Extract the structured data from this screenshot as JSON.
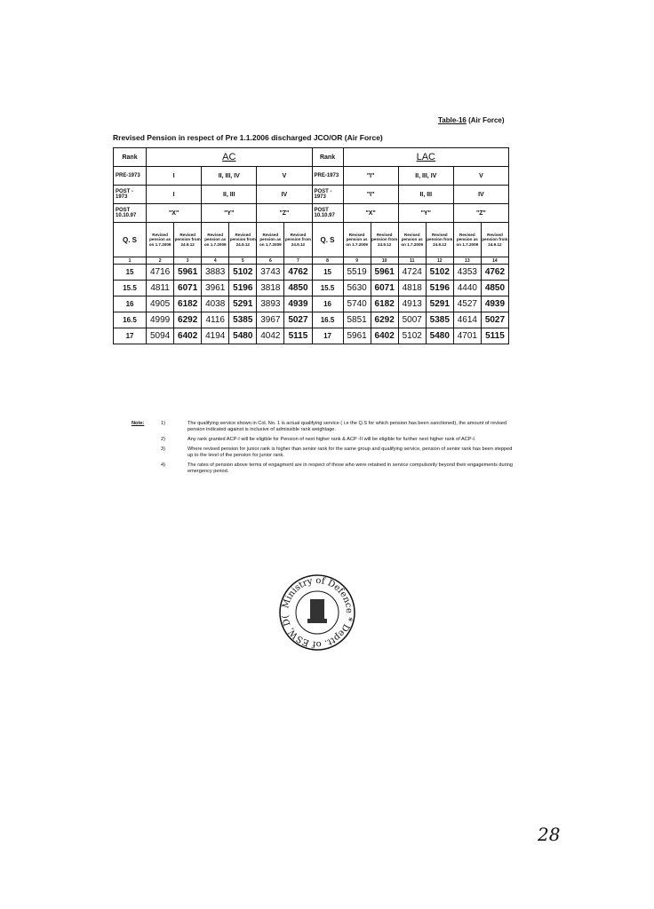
{
  "table_ref": {
    "label": "Table-16",
    "suffix": " (Air Force)"
  },
  "title": "Rrevised Pension in respect of Pre 1.1.2006 discharged JCO/OR (Air Force)",
  "table": {
    "rank_label": "Rank",
    "ac": "AC",
    "lac": "LAC",
    "rows_left": [
      "PRE-1973",
      "POST - 1973",
      "POST 10.10.97"
    ],
    "ac_groups": [
      [
        "I",
        "II, III, IV",
        "V"
      ],
      [
        "I",
        "II, III",
        "IV"
      ],
      [
        "\"X\"",
        "\"Y\"",
        "\"Z\""
      ]
    ],
    "lac_groups": [
      [
        "\"I\"",
        "II, III, IV",
        "V"
      ],
      [
        "\"I\"",
        "II, III",
        "IV"
      ],
      [
        "\"X\"",
        "\"Y\"",
        "\"Z\""
      ]
    ],
    "qs_label": "Q. S",
    "col_heads": [
      "Revised pension as on 1.7.2009",
      "Revised pension from 24.9.12"
    ],
    "col_numbers": [
      "1",
      "2",
      "3",
      "4",
      "5",
      "6",
      "7",
      "8",
      "9",
      "10",
      "11",
      "12",
      "13",
      "14"
    ],
    "rows": [
      [
        "15",
        "4716",
        "5961",
        "3883",
        "5102",
        "3743",
        "4762",
        "15",
        "5519",
        "5961",
        "4724",
        "5102",
        "4353",
        "4762"
      ],
      [
        "15.5",
        "4811",
        "6071",
        "3961",
        "5196",
        "3818",
        "4850",
        "15.5",
        "5630",
        "6071",
        "4818",
        "5196",
        "4440",
        "4850"
      ],
      [
        "16",
        "4905",
        "6182",
        "4038",
        "5291",
        "3893",
        "4939",
        "16",
        "5740",
        "6182",
        "4913",
        "5291",
        "4527",
        "4939"
      ],
      [
        "16.5",
        "4999",
        "6292",
        "4116",
        "5385",
        "3967",
        "5027",
        "16.5",
        "5851",
        "6292",
        "5007",
        "5385",
        "4614",
        "5027"
      ],
      [
        "17",
        "5094",
        "6402",
        "4194",
        "5480",
        "4042",
        "5115",
        "17",
        "5961",
        "6402",
        "5102",
        "5480",
        "4701",
        "5115"
      ]
    ]
  },
  "notes": {
    "label": "Note:",
    "items": [
      {
        "n": "1)",
        "text": "The qualifying service shown in Col. No. 1 is actual qualifying service ( i.e the Q.S for which pension has been sanctioned), the amount of revised pension indicated against is inclusive of admissible rank weightage."
      },
      {
        "n": "2)",
        "text": "Any rank granted ACP-I will be eligible for Pension of next higher rank & ACP -II will be eligible for further next higher rank of ACP-I."
      },
      {
        "n": "3)",
        "text": "Where revised pension for junior rank is higher than senior rank for the same group and qualifying service, pension of senior rank has been stepped up to the level of the pension for junior rank."
      },
      {
        "n": "4)",
        "text": "The rates of pension above terms of engagment are in respect of those who were retained in service compulsorily beyond their engagements during emergency period."
      }
    ]
  },
  "stamp": {
    "text": "Ministry of Defence * Deptt. of ESW, D(Pen/Policy)"
  },
  "page_number": "28"
}
